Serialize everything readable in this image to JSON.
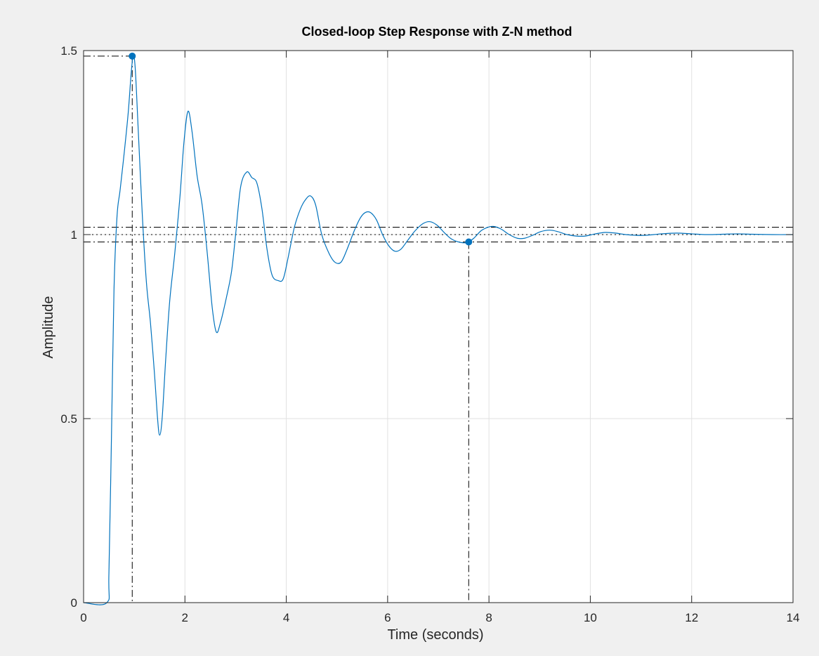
{
  "chart_data": {
    "type": "line",
    "title": "Closed-loop Step Response with Z-N method",
    "xlabel": "Time (seconds)",
    "ylabel": "Amplitude",
    "xlim": [
      0,
      14
    ],
    "ylim": [
      0,
      1.5
    ],
    "xticks": [
      "0",
      "2",
      "4",
      "6",
      "8",
      "10",
      "12",
      "14"
    ],
    "yticks": [
      "0",
      "0.5",
      "1",
      "1.5"
    ],
    "grid": true,
    "colors": {
      "line": "#0072bd",
      "markers": "#0072bd",
      "reference": "#000000",
      "grid": "#e1e1e1"
    },
    "reference_lines": {
      "steady_state": 1.0,
      "settling_upper": 1.02,
      "settling_lower": 0.98
    },
    "markers": [
      {
        "name": "peak-response",
        "x": 0.96,
        "y": 1.485
      },
      {
        "name": "settling-time",
        "x": 7.6,
        "y": 0.98
      }
    ],
    "series": [
      {
        "values": [
          [
            0,
            0
          ],
          [
            0.46,
            0
          ],
          [
            0.5,
            0.08
          ],
          [
            0.55,
            0.45
          ],
          [
            0.6,
            0.85
          ],
          [
            0.66,
            1.05
          ],
          [
            0.72,
            1.12
          ],
          [
            0.8,
            1.22
          ],
          [
            0.88,
            1.33
          ],
          [
            0.94,
            1.44
          ],
          [
            0.98,
            1.485
          ],
          [
            1.02,
            1.45
          ],
          [
            1.08,
            1.28
          ],
          [
            1.16,
            1.05
          ],
          [
            1.24,
            0.87
          ],
          [
            1.32,
            0.76
          ],
          [
            1.4,
            0.62
          ],
          [
            1.46,
            0.5
          ],
          [
            1.5,
            0.455
          ],
          [
            1.55,
            0.5
          ],
          [
            1.62,
            0.66
          ],
          [
            1.7,
            0.82
          ],
          [
            1.8,
            0.95
          ],
          [
            1.9,
            1.1
          ],
          [
            1.98,
            1.25
          ],
          [
            2.06,
            1.335
          ],
          [
            2.14,
            1.28
          ],
          [
            2.24,
            1.16
          ],
          [
            2.34,
            1.08
          ],
          [
            2.44,
            0.95
          ],
          [
            2.54,
            0.8
          ],
          [
            2.62,
            0.735
          ],
          [
            2.7,
            0.76
          ],
          [
            2.82,
            0.83
          ],
          [
            2.92,
            0.9
          ],
          [
            3.0,
            1.0
          ],
          [
            3.1,
            1.13
          ],
          [
            3.22,
            1.17
          ],
          [
            3.32,
            1.155
          ],
          [
            3.42,
            1.14
          ],
          [
            3.52,
            1.07
          ],
          [
            3.62,
            0.96
          ],
          [
            3.72,
            0.89
          ],
          [
            3.84,
            0.875
          ],
          [
            3.94,
            0.88
          ],
          [
            4.04,
            0.94
          ],
          [
            4.16,
            1.02
          ],
          [
            4.28,
            1.07
          ],
          [
            4.38,
            1.095
          ],
          [
            4.48,
            1.105
          ],
          [
            4.58,
            1.08
          ],
          [
            4.7,
            1.0
          ],
          [
            4.84,
            0.95
          ],
          [
            4.96,
            0.925
          ],
          [
            5.08,
            0.925
          ],
          [
            5.2,
            0.96
          ],
          [
            5.34,
            1.01
          ],
          [
            5.46,
            1.045
          ],
          [
            5.56,
            1.06
          ],
          [
            5.66,
            1.06
          ],
          [
            5.78,
            1.04
          ],
          [
            5.9,
            1.0
          ],
          [
            6.02,
            0.97
          ],
          [
            6.14,
            0.955
          ],
          [
            6.26,
            0.96
          ],
          [
            6.4,
            0.985
          ],
          [
            6.54,
            1.01
          ],
          [
            6.7,
            1.03
          ],
          [
            6.84,
            1.035
          ],
          [
            6.98,
            1.025
          ],
          [
            7.12,
            1.005
          ],
          [
            7.26,
            0.988
          ],
          [
            7.4,
            0.98
          ],
          [
            7.56,
            0.978
          ],
          [
            7.7,
            0.99
          ],
          [
            7.84,
            1.01
          ],
          [
            7.98,
            1.02
          ],
          [
            8.1,
            1.022
          ],
          [
            8.24,
            1.015
          ],
          [
            8.4,
            1.0
          ],
          [
            8.56,
            0.99
          ],
          [
            8.7,
            0.99
          ],
          [
            8.86,
            0.998
          ],
          [
            9.02,
            1.008
          ],
          [
            9.2,
            1.012
          ],
          [
            9.36,
            1.008
          ],
          [
            9.54,
            1.0
          ],
          [
            9.72,
            0.996
          ],
          [
            9.9,
            0.996
          ],
          [
            10.1,
            1.002
          ],
          [
            10.3,
            1.006
          ],
          [
            10.5,
            1.004
          ],
          [
            10.7,
            1.0
          ],
          [
            10.9,
            0.998
          ],
          [
            11.1,
            0.998
          ],
          [
            11.4,
            1.002
          ],
          [
            11.7,
            1.004
          ],
          [
            12.0,
            1.002
          ],
          [
            12.3,
            1.0
          ],
          [
            12.6,
            1.001
          ],
          [
            12.9,
            1.002
          ],
          [
            13.2,
            1.001
          ],
          [
            13.6,
            1.0
          ],
          [
            14,
            1.0
          ]
        ]
      }
    ]
  }
}
